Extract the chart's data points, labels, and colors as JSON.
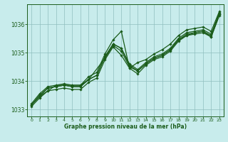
{
  "xlabel": "Graphe pression niveau de la mer (hPa)",
  "bg_color": "#c8ecec",
  "grid_color": "#8fbfbf",
  "line_color": "#1a5c1a",
  "xlim": [
    -0.5,
    23.5
  ],
  "ylim": [
    1032.75,
    1036.7
  ],
  "yticks": [
    1033,
    1034,
    1035,
    1036
  ],
  "xticks": [
    0,
    1,
    2,
    3,
    4,
    5,
    6,
    7,
    8,
    9,
    10,
    11,
    12,
    13,
    14,
    15,
    16,
    17,
    18,
    19,
    20,
    21,
    22,
    23
  ],
  "line1_x": [
    0,
    1,
    2,
    3,
    4,
    5,
    6,
    7,
    8,
    9,
    10,
    11,
    12,
    13,
    14,
    15,
    16,
    17,
    18,
    19,
    20,
    21,
    22,
    23
  ],
  "line1_y": [
    1033.2,
    1033.55,
    1033.8,
    1033.85,
    1033.9,
    1033.85,
    1033.85,
    1034.15,
    1034.3,
    1034.95,
    1035.45,
    1035.75,
    1034.45,
    1034.65,
    1034.75,
    1034.95,
    1035.1,
    1035.3,
    1035.6,
    1035.8,
    1035.85,
    1035.9,
    1035.75,
    1036.45
  ],
  "line2_x": [
    0,
    1,
    2,
    3,
    4,
    5,
    6,
    7,
    8,
    9,
    10,
    11,
    12,
    13,
    14,
    15,
    16,
    17,
    18,
    19,
    20,
    21,
    22,
    23
  ],
  "line2_y": [
    1033.15,
    1033.5,
    1033.75,
    1033.8,
    1033.85,
    1033.8,
    1033.8,
    1034.05,
    1034.2,
    1034.85,
    1035.3,
    1035.15,
    1034.6,
    1034.4,
    1034.65,
    1034.85,
    1034.95,
    1035.15,
    1035.5,
    1035.7,
    1035.75,
    1035.8,
    1035.65,
    1036.4
  ],
  "line3_x": [
    0,
    2,
    3,
    4,
    5,
    6,
    7,
    8,
    9,
    10,
    11,
    12,
    13,
    14,
    15,
    16,
    17,
    18,
    19,
    20,
    21,
    22,
    23
  ],
  "line3_y": [
    1033.15,
    1033.75,
    1033.8,
    1033.85,
    1033.8,
    1033.8,
    1034.05,
    1034.2,
    1034.85,
    1035.3,
    1035.15,
    1034.55,
    1034.35,
    1034.6,
    1034.8,
    1034.9,
    1035.1,
    1035.45,
    1035.65,
    1035.7,
    1035.75,
    1035.6,
    1036.35
  ],
  "line4_x": [
    1,
    2,
    3,
    4,
    5,
    6,
    7,
    9,
    10,
    11,
    12,
    13,
    14,
    15,
    16,
    17,
    18,
    19,
    20,
    21,
    22,
    23
  ],
  "line4_y": [
    1033.45,
    1033.65,
    1033.85,
    1033.85,
    1033.85,
    1033.85,
    1034.05,
    1034.8,
    1035.25,
    1035.05,
    1034.5,
    1034.35,
    1034.6,
    1034.8,
    1034.9,
    1035.1,
    1035.45,
    1035.6,
    1035.7,
    1035.75,
    1035.55,
    1036.35
  ],
  "line5_x": [
    0,
    1,
    2,
    3,
    4,
    5,
    6,
    7,
    8,
    9,
    10,
    11,
    12,
    13,
    14,
    15,
    16,
    17,
    18,
    19,
    20,
    21,
    22,
    23
  ],
  "line5_y": [
    1033.1,
    1033.4,
    1033.65,
    1033.7,
    1033.75,
    1033.7,
    1033.7,
    1033.95,
    1034.1,
    1034.75,
    1035.2,
    1034.9,
    1034.45,
    1034.25,
    1034.55,
    1034.75,
    1034.85,
    1035.05,
    1035.4,
    1035.6,
    1035.65,
    1035.7,
    1035.55,
    1036.3
  ]
}
